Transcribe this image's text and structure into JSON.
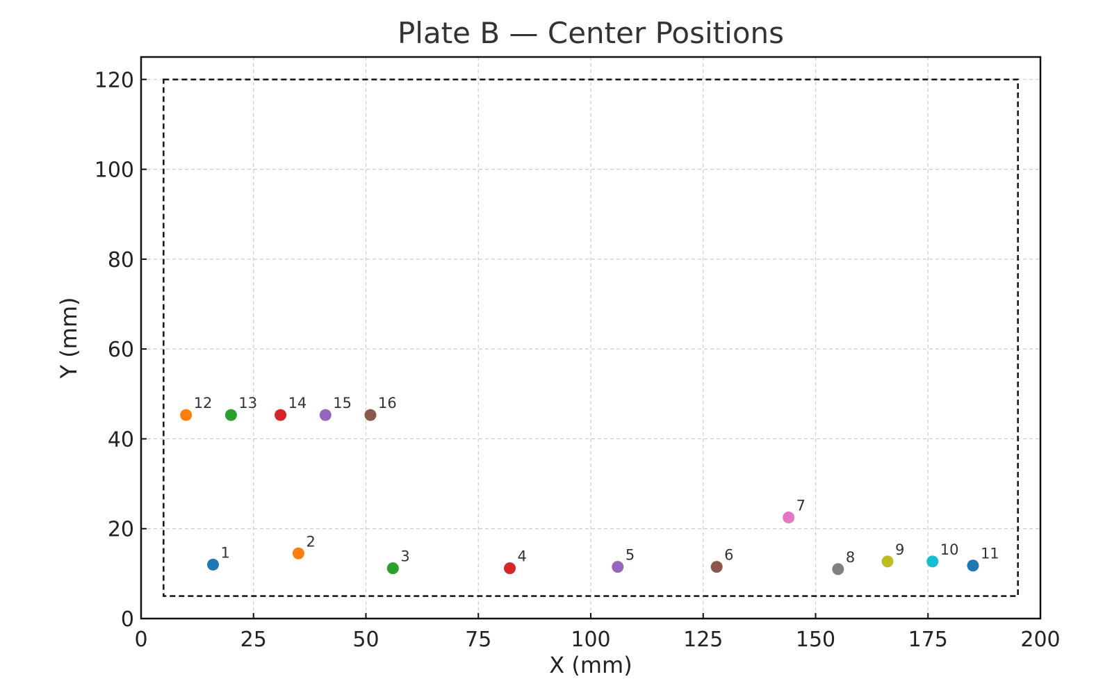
{
  "chart_data": {
    "type": "scatter",
    "title": "Plate B — Center Positions",
    "xlabel": "X (mm)",
    "ylabel": "Y (mm)",
    "xlim": [
      0,
      200
    ],
    "ylim": [
      0,
      125
    ],
    "xticks": [
      0,
      25,
      50,
      75,
      100,
      125,
      150,
      175,
      200
    ],
    "yticks": [
      0,
      20,
      40,
      60,
      80,
      100,
      120
    ],
    "grid": true,
    "plate_boundary": {
      "x_min": 5,
      "x_max": 195,
      "y_min": 5,
      "y_max": 120,
      "style": "dashed"
    },
    "points": [
      {
        "label": "1",
        "x": 16,
        "y": 12,
        "color": "#1f77b4"
      },
      {
        "label": "2",
        "x": 35,
        "y": 14.5,
        "color": "#ff7f0e"
      },
      {
        "label": "3",
        "x": 56,
        "y": 11.2,
        "color": "#2ca02c"
      },
      {
        "label": "4",
        "x": 82,
        "y": 11.2,
        "color": "#d62728"
      },
      {
        "label": "5",
        "x": 106,
        "y": 11.5,
        "color": "#9467bd"
      },
      {
        "label": "6",
        "x": 128,
        "y": 11.5,
        "color": "#8c564b"
      },
      {
        "label": "7",
        "x": 144,
        "y": 22.5,
        "color": "#e377c2"
      },
      {
        "label": "8",
        "x": 155,
        "y": 11,
        "color": "#7f7f7f"
      },
      {
        "label": "9",
        "x": 166,
        "y": 12.7,
        "color": "#bcbd22"
      },
      {
        "label": "10",
        "x": 176,
        "y": 12.7,
        "color": "#17becf"
      },
      {
        "label": "11",
        "x": 185,
        "y": 11.8,
        "color": "#1f77b4"
      },
      {
        "label": "12",
        "x": 10,
        "y": 45.3,
        "color": "#ff7f0e"
      },
      {
        "label": "13",
        "x": 20,
        "y": 45.3,
        "color": "#2ca02c"
      },
      {
        "label": "14",
        "x": 31,
        "y": 45.3,
        "color": "#d62728"
      },
      {
        "label": "15",
        "x": 41,
        "y": 45.3,
        "color": "#9467bd"
      },
      {
        "label": "16",
        "x": 51,
        "y": 45.3,
        "color": "#8c564b"
      }
    ]
  }
}
